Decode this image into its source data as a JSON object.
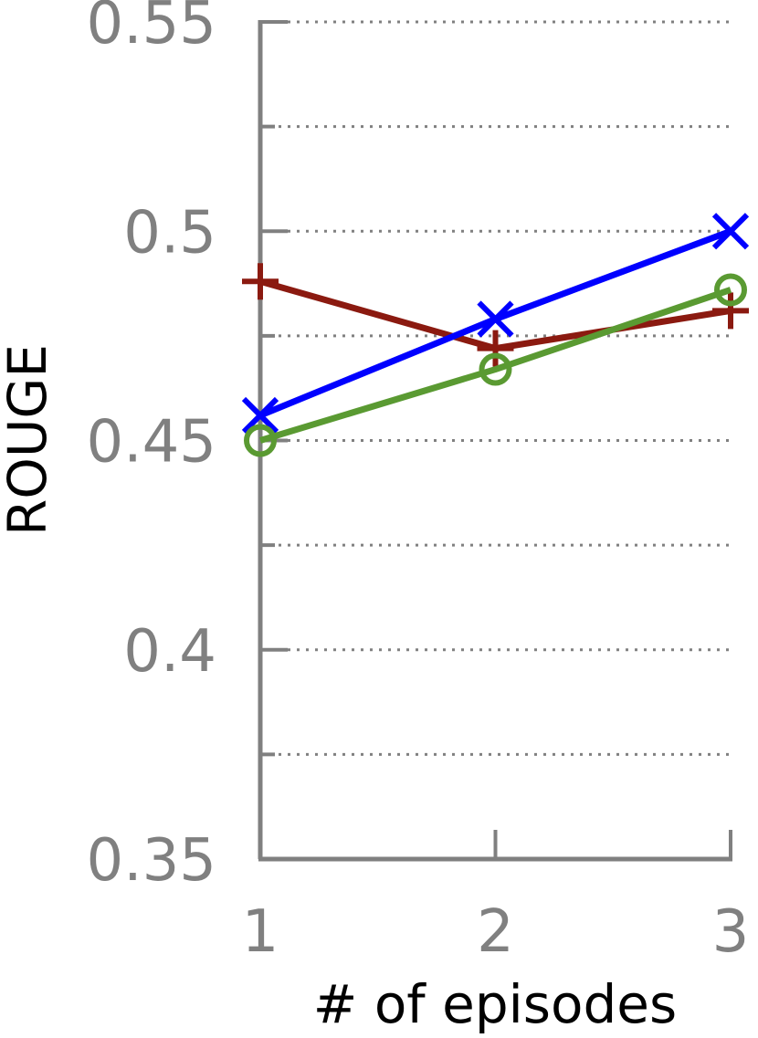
{
  "chart_data": {
    "type": "line",
    "title": "",
    "xlabel": "# of episodes",
    "ylabel": "ROUGE",
    "x": [
      1,
      2,
      3
    ],
    "x_tick_labels": [
      "1",
      "2",
      "3"
    ],
    "ylim": [
      0.35,
      0.55
    ],
    "y_ticks": [
      0.35,
      0.4,
      0.45,
      0.5,
      0.55
    ],
    "y_tick_labels": [
      "0.35",
      "0.4",
      "0.45",
      "0.5",
      "0.55"
    ],
    "y_minor_ticks": [
      0.375,
      0.425,
      0.475,
      0.525
    ],
    "grid": true,
    "legend": "none",
    "series": [
      {
        "values": [
          0.488,
          0.472,
          0.481
        ],
        "color": "#8b1a10",
        "marker": "plus"
      },
      {
        "values": [
          0.456,
          0.479,
          0.5
        ],
        "color": "#0000ff",
        "marker": "x"
      },
      {
        "values": [
          0.45,
          0.467,
          0.486
        ],
        "color": "#5a9a32",
        "marker": "circle"
      }
    ]
  }
}
